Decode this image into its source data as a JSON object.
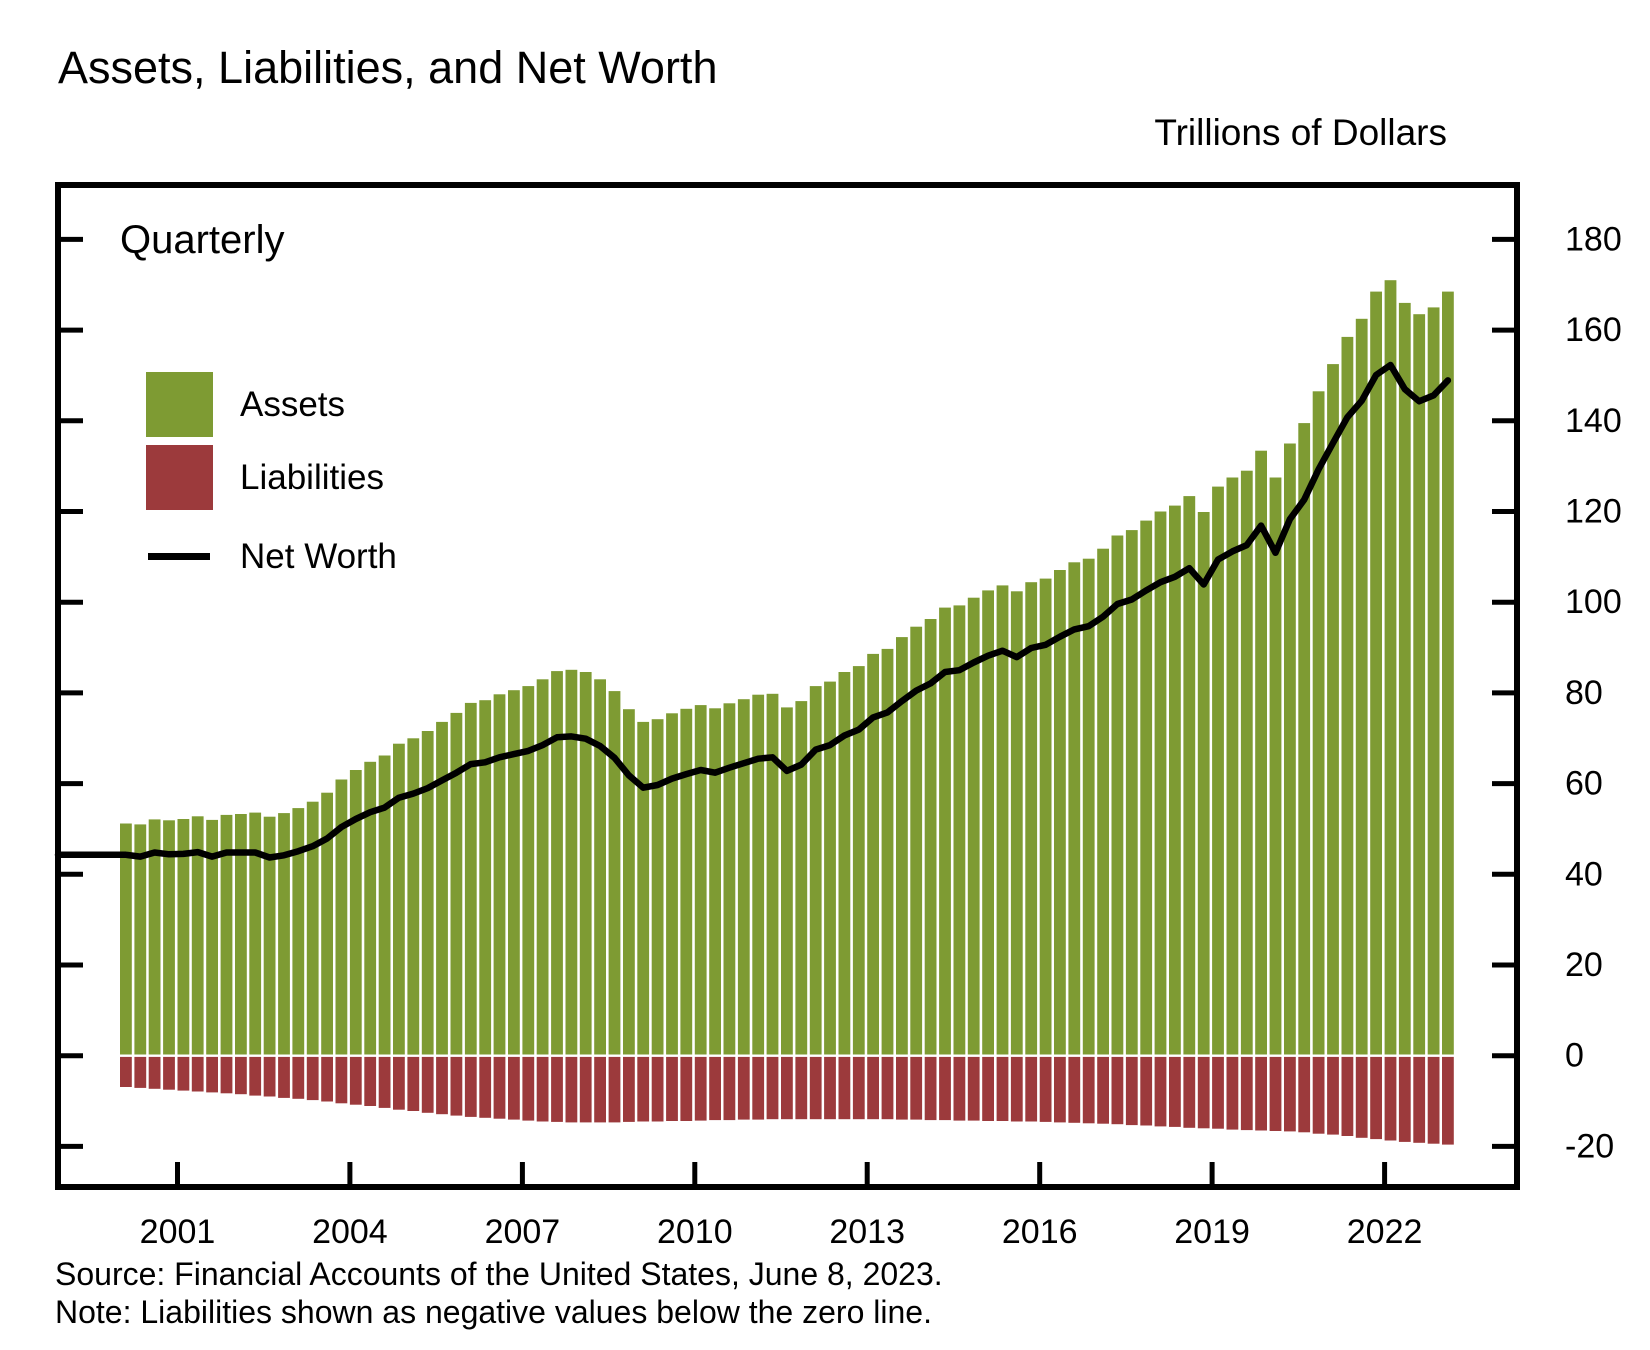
{
  "title": "Assets, Liabilities, and Net Worth",
  "units_label": "Trillions of Dollars",
  "frequency_label": "Quarterly",
  "legend": {
    "assets_label": "Assets",
    "liabilities_label": "Liabilities",
    "net_worth_label": "Net Worth"
  },
  "source_line": "Source: Financial Accounts of the United States, June 8, 2023.",
  "note_line": "Note: Liabilities shown as negative values below the zero line.",
  "colors": {
    "assets": "#7E9B33",
    "liabilities": "#9C3A3C",
    "net_worth": "#000000",
    "axis": "#000000",
    "background": "#ffffff"
  },
  "chart_data": {
    "type": "bar",
    "frequency": "Quarterly",
    "start_period": "2000Q1",
    "end_period": "2023Q1",
    "x_axis": {
      "tick_years": [
        2001,
        2004,
        2007,
        2010,
        2013,
        2016,
        2019,
        2022
      ]
    },
    "y_axis": {
      "side": "right",
      "ticks": [
        -20,
        0,
        20,
        40,
        60,
        80,
        100,
        120,
        140,
        160,
        180
      ],
      "range": [
        -28.9,
        191.8
      ]
    },
    "grid": false,
    "legend_position": "upper-left-inside",
    "series": [
      {
        "name": "Assets",
        "type": "bar",
        "values": [
          51.2,
          51.0,
          52.1,
          51.9,
          52.2,
          52.8,
          52.0,
          53.1,
          53.3,
          53.6,
          52.7,
          53.5,
          54.6,
          56.0,
          58.0,
          60.9,
          63.0,
          64.8,
          66.2,
          68.8,
          70.0,
          71.6,
          73.6,
          75.6,
          77.8,
          78.4,
          79.7,
          80.6,
          81.5,
          83.0,
          84.8,
          85.1,
          84.6,
          83.0,
          80.4,
          76.4,
          73.6,
          74.2,
          75.5,
          76.5,
          77.3,
          76.6,
          77.7,
          78.6,
          79.6,
          79.8,
          76.8,
          78.2,
          81.5,
          82.5,
          84.6,
          85.9,
          88.6,
          89.7,
          92.3,
          94.6,
          96.3,
          98.8,
          99.3,
          101.0,
          102.6,
          103.7,
          102.4,
          104.4,
          105.2,
          107.1,
          108.8,
          109.6,
          111.8,
          114.7,
          115.9,
          118.0,
          120.0,
          121.3,
          123.4,
          119.9,
          125.5,
          127.5,
          129.0,
          133.4,
          127.5,
          135.0,
          139.5,
          146.5,
          152.5,
          158.5,
          162.5,
          168.5,
          171.0,
          166.0,
          163.5,
          165.0,
          168.5
        ]
      },
      {
        "name": "Liabilities",
        "type": "bar",
        "values": [
          -6.9,
          -7.1,
          -7.3,
          -7.5,
          -7.7,
          -7.9,
          -8.1,
          -8.3,
          -8.5,
          -8.8,
          -9.0,
          -9.3,
          -9.5,
          -9.8,
          -10.1,
          -10.5,
          -10.8,
          -11.1,
          -11.5,
          -11.9,
          -12.2,
          -12.6,
          -12.9,
          -13.2,
          -13.5,
          -13.7,
          -13.9,
          -14.1,
          -14.3,
          -14.5,
          -14.6,
          -14.7,
          -14.7,
          -14.7,
          -14.7,
          -14.6,
          -14.5,
          -14.5,
          -14.4,
          -14.4,
          -14.3,
          -14.2,
          -14.2,
          -14.1,
          -14.1,
          -14.0,
          -14.0,
          -14.0,
          -14.0,
          -14.0,
          -14.0,
          -14.0,
          -14.0,
          -14.0,
          -14.1,
          -14.1,
          -14.2,
          -14.2,
          -14.3,
          -14.3,
          -14.4,
          -14.4,
          -14.5,
          -14.5,
          -14.6,
          -14.7,
          -14.8,
          -14.9,
          -15.0,
          -15.1,
          -15.3,
          -15.4,
          -15.6,
          -15.7,
          -15.9,
          -16.0,
          -16.1,
          -16.3,
          -16.4,
          -16.5,
          -16.6,
          -16.7,
          -16.9,
          -17.2,
          -17.4,
          -17.7,
          -18.1,
          -18.4,
          -18.7,
          -19.0,
          -19.2,
          -19.4,
          -19.6
        ]
      },
      {
        "name": "Net Worth",
        "type": "line",
        "values": [
          44.3,
          43.9,
          44.8,
          44.4,
          44.5,
          44.9,
          43.9,
          44.8,
          44.8,
          44.8,
          43.7,
          44.2,
          45.1,
          46.2,
          47.9,
          50.4,
          52.2,
          53.7,
          54.7,
          56.9,
          57.8,
          59.0,
          60.7,
          62.4,
          64.3,
          64.7,
          65.8,
          66.5,
          67.2,
          68.5,
          70.2,
          70.4,
          69.9,
          68.3,
          65.7,
          61.8,
          59.1,
          59.7,
          61.1,
          62.1,
          63.0,
          62.4,
          63.5,
          64.5,
          65.5,
          65.8,
          62.8,
          64.2,
          67.5,
          68.5,
          70.6,
          71.9,
          74.6,
          75.7,
          78.2,
          80.5,
          82.1,
          84.6,
          85.0,
          86.7,
          88.2,
          89.3,
          87.9,
          89.9,
          90.6,
          92.4,
          94.0,
          94.7,
          96.8,
          99.6,
          100.6,
          102.6,
          104.4,
          105.6,
          107.5,
          103.9,
          109.4,
          111.2,
          112.6,
          116.9,
          110.9,
          118.3,
          122.6,
          129.3,
          135.1,
          140.8,
          144.4,
          150.1,
          152.3,
          147.0,
          144.3,
          145.6,
          148.9
        ]
      }
    ]
  }
}
